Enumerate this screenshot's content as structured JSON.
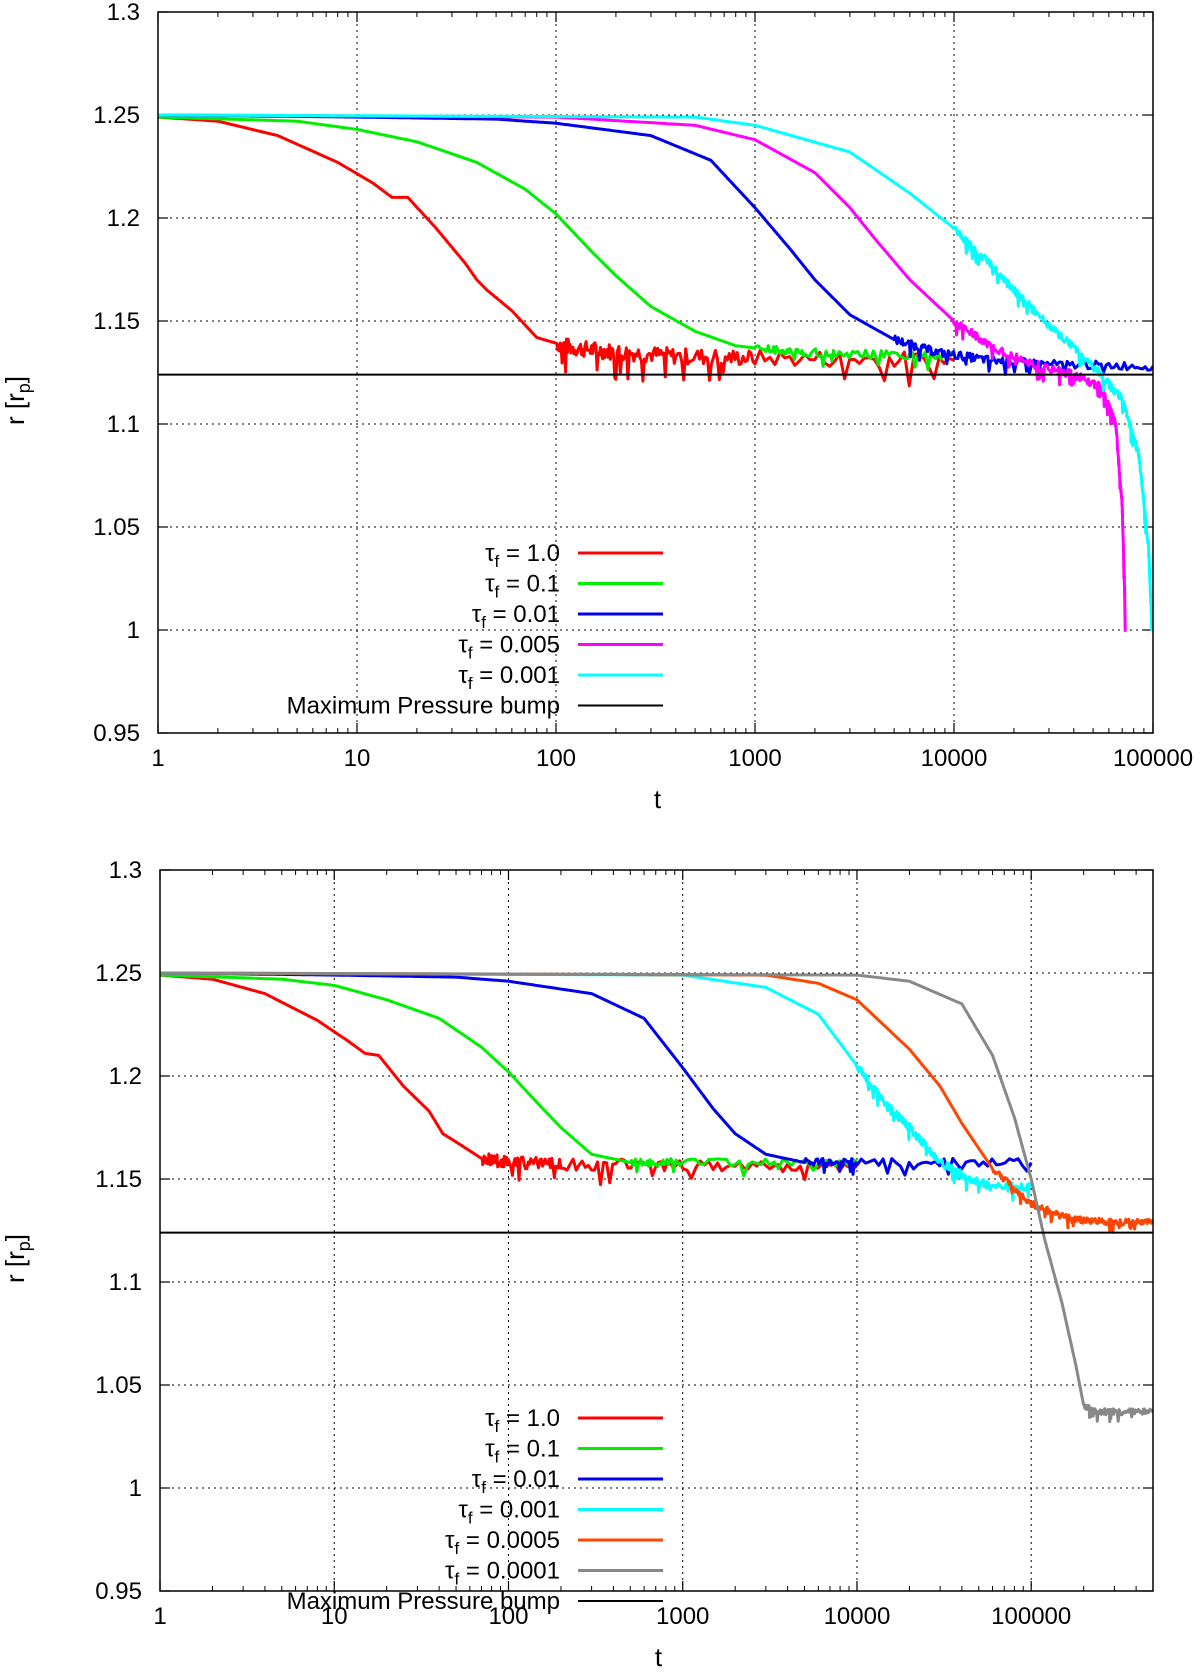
{
  "chart_data": [
    {
      "type": "line",
      "x_scale": "log",
      "xlim": [
        1,
        100000
      ],
      "ylim": [
        0.95,
        1.3
      ],
      "xlabel": "t",
      "ylabel": "r [r_p]",
      "ylabel_main": "r [r",
      "ylabel_sub": "p",
      "ylabel_close": "]",
      "x_ticks": [
        1,
        10,
        100,
        1000,
        10000,
        100000
      ],
      "x_tick_labels": [
        "1",
        "10",
        "100",
        "1000",
        "10000",
        "100000"
      ],
      "y_ticks": [
        0.95,
        1,
        1.05,
        1.1,
        1.15,
        1.2,
        1.25,
        1.3
      ],
      "y_tick_labels": [
        "0.95",
        "1",
        "1.05",
        "1.1",
        "1.15",
        "1.2",
        "1.25",
        "1.3"
      ],
      "grid": true,
      "legend_position": "bottom-center",
      "series": [
        {
          "name": "τf = 1.0",
          "tau": "1.0",
          "color": "#ff0000",
          "x": [
            1,
            2,
            4,
            8,
            12,
            15,
            18,
            25,
            35,
            40,
            45,
            60,
            80,
            120,
            200,
            400,
            1000,
            10000
          ],
          "y": [
            1.249,
            1.247,
            1.24,
            1.227,
            1.217,
            1.21,
            1.21,
            1.195,
            1.178,
            1.17,
            1.165,
            1.155,
            1.142,
            1.137,
            1.135,
            1.133,
            1.132,
            1.131
          ],
          "noise_from": 100,
          "noise_amp": 0.004
        },
        {
          "name": "τf = 0.1",
          "tau": "0.1",
          "color": "#00ee00",
          "x": [
            1,
            5,
            10,
            20,
            40,
            70,
            100,
            150,
            200,
            300,
            500,
            800,
            1500,
            3000,
            10000
          ],
          "y": [
            1.249,
            1.247,
            1.243,
            1.237,
            1.227,
            1.214,
            1.202,
            1.184,
            1.172,
            1.157,
            1.145,
            1.138,
            1.135,
            1.134,
            1.133
          ],
          "noise_from": 1000,
          "noise_amp": 0.002
        },
        {
          "name": "τf = 0.01",
          "tau": "0.01",
          "color": "#0000ee",
          "x": [
            1,
            10,
            50,
            100,
            300,
            600,
            1000,
            1500,
            2000,
            3000,
            5000,
            8000,
            15000,
            30000,
            100000
          ],
          "y": [
            1.25,
            1.249,
            1.248,
            1.246,
            1.24,
            1.228,
            1.205,
            1.185,
            1.17,
            1.153,
            1.141,
            1.135,
            1.131,
            1.129,
            1.128
          ],
          "noise_from": 5000,
          "noise_amp": 0.002
        },
        {
          "name": "τf = 0.005",
          "tau": "0.005",
          "color": "#ff00ff",
          "x": [
            1,
            100,
            500,
            1000,
            2000,
            3000,
            4000,
            6000,
            10000,
            15000,
            25000,
            40000,
            55000,
            65000,
            70000,
            72000,
            72500
          ],
          "y": [
            1.25,
            1.249,
            1.245,
            1.238,
            1.222,
            1.205,
            1.19,
            1.17,
            1.15,
            1.138,
            1.129,
            1.124,
            1.118,
            1.1,
            1.06,
            1.02,
            1.0
          ],
          "noise_from": 10000,
          "noise_amp": 0.002
        },
        {
          "name": "τf = 0.001",
          "tau": "0.001",
          "color": "#00ffff",
          "x": [
            1,
            500,
            1000,
            3000,
            6000,
            10000,
            15000,
            20000,
            30000,
            50000,
            70000,
            85000,
            95000,
            99000
          ],
          "y": [
            1.25,
            1.249,
            1.245,
            1.232,
            1.212,
            1.195,
            1.178,
            1.165,
            1.148,
            1.128,
            1.112,
            1.085,
            1.04,
            1.0
          ],
          "noise_from": 10000,
          "noise_amp": 0.002
        },
        {
          "name": "Maximum Pressure bump",
          "tau": "",
          "color": "#000000",
          "x": [
            1,
            100000
          ],
          "y": [
            1.124,
            1.124
          ],
          "thin": true
        }
      ]
    },
    {
      "type": "line",
      "x_scale": "log",
      "xlim": [
        1,
        500000
      ],
      "ylim": [
        0.95,
        1.3
      ],
      "xlabel": "t",
      "ylabel": "r [r_p]",
      "ylabel_main": "r [r",
      "ylabel_sub": "p",
      "ylabel_close": "]",
      "x_ticks": [
        1,
        10,
        100,
        1000,
        10000,
        100000
      ],
      "x_tick_labels": [
        "1",
        "10",
        "100",
        "1000",
        "10000",
        "100000"
      ],
      "y_ticks": [
        0.95,
        1,
        1.05,
        1.1,
        1.15,
        1.2,
        1.25,
        1.3
      ],
      "y_tick_labels": [
        "0.95",
        "1",
        "1.05",
        "1.1",
        "1.15",
        "1.2",
        "1.25",
        "1.3"
      ],
      "grid": true,
      "legend_position": "bottom-center",
      "series": [
        {
          "name": "τf = 1.0",
          "tau": "1.0",
          "color": "#ff0000",
          "x": [
            1,
            2,
            4,
            8,
            12,
            15,
            18,
            25,
            35,
            42,
            50,
            70,
            100,
            200,
            1000,
            10000
          ],
          "y": [
            1.249,
            1.247,
            1.24,
            1.227,
            1.217,
            1.211,
            1.21,
            1.195,
            1.183,
            1.172,
            1.168,
            1.16,
            1.158,
            1.157,
            1.157,
            1.156
          ],
          "noise_from": 70,
          "noise_amp": 0.003
        },
        {
          "name": "τf = 0.1",
          "tau": "0.1",
          "color": "#00ee00",
          "x": [
            1,
            5,
            10,
            20,
            40,
            70,
            100,
            150,
            200,
            300,
            500,
            1000,
            10000
          ],
          "y": [
            1.249,
            1.247,
            1.244,
            1.237,
            1.228,
            1.214,
            1.202,
            1.186,
            1.175,
            1.162,
            1.158,
            1.158,
            1.158
          ],
          "noise_from": 500,
          "noise_amp": 0.002
        },
        {
          "name": "τf = 0.01",
          "tau": "0.01",
          "color": "#0000ee",
          "x": [
            1,
            10,
            50,
            100,
            300,
            600,
            1000,
            1500,
            2000,
            3000,
            5000,
            10000,
            100000
          ],
          "y": [
            1.25,
            1.249,
            1.248,
            1.246,
            1.24,
            1.228,
            1.204,
            1.184,
            1.172,
            1.162,
            1.158,
            1.158,
            1.158
          ],
          "noise_from": 5000,
          "noise_amp": 0.002
        },
        {
          "name": "τf = 0.001",
          "tau": "0.001",
          "color": "#00ffff",
          "x": [
            1,
            1000,
            3000,
            6000,
            10000,
            15000,
            20000,
            30000,
            40000,
            60000,
            100000
          ],
          "y": [
            1.25,
            1.249,
            1.243,
            1.23,
            1.205,
            1.185,
            1.175,
            1.158,
            1.152,
            1.146,
            1.146
          ],
          "noise_from": 10000,
          "noise_amp": 0.002
        },
        {
          "name": "τf = 0.0005",
          "tau": "0.0005",
          "color": "#ff4500",
          "x": [
            1,
            3000,
            6000,
            10000,
            20000,
            30000,
            40000,
            60000,
            100000,
            150000,
            200000,
            300000,
            500000
          ],
          "y": [
            1.25,
            1.249,
            1.245,
            1.237,
            1.213,
            1.195,
            1.177,
            1.155,
            1.138,
            1.132,
            1.13,
            1.129,
            1.129
          ],
          "noise_from": 60000,
          "noise_amp": 0.0015
        },
        {
          "name": "τf = 0.0001",
          "tau": "0.0001",
          "color": "#888888",
          "x": [
            1,
            10000,
            20000,
            40000,
            60000,
            80000,
            100000,
            120000,
            150000,
            180000,
            200000,
            230000,
            300000,
            500000
          ],
          "y": [
            1.25,
            1.249,
            1.246,
            1.235,
            1.21,
            1.18,
            1.15,
            1.12,
            1.09,
            1.06,
            1.04,
            1.037,
            1.037,
            1.037
          ],
          "noise_from": 200000,
          "noise_amp": 0.0015
        },
        {
          "name": "Maximum Pressure bump",
          "tau": "",
          "color": "#000000",
          "x": [
            1,
            500000
          ],
          "y": [
            1.124,
            1.124
          ],
          "thin": true
        }
      ]
    }
  ]
}
